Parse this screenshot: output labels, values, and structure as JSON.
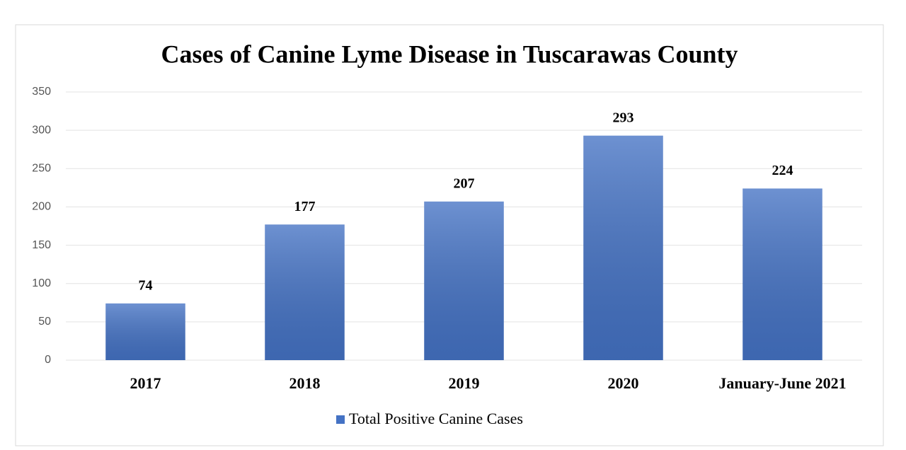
{
  "chart_data": {
    "type": "bar",
    "title": "Cases of Canine Lyme Disease in Tuscarawas County",
    "categories": [
      "2017",
      "2018",
      "2019",
      "2020",
      "January-June 2021"
    ],
    "series": [
      {
        "name": "Total Positive Canine Cases",
        "color": "#4472c4",
        "values": [
          74,
          177,
          207,
          293,
          224
        ]
      }
    ],
    "ylim": [
      0,
      350
    ],
    "yticks": [
      0,
      50,
      100,
      150,
      200,
      250,
      300,
      350
    ],
    "grid": true,
    "legend": "bottom",
    "data_labels": true
  }
}
